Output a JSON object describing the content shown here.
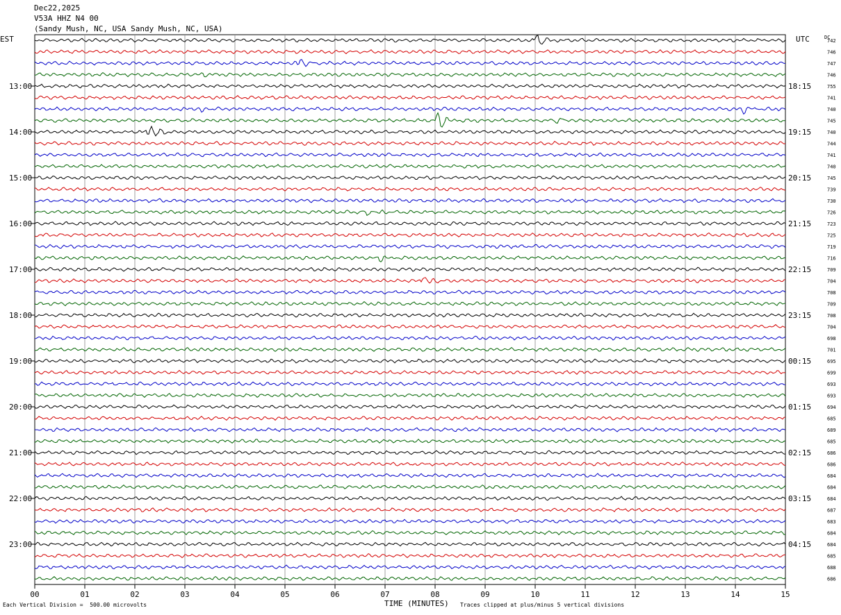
{
  "header": {
    "date": "Dec22,2025",
    "station": "V53A HHZ N4 00",
    "location": "(Sandy Mush, NC, USA Sandy Mush, NC, USA)"
  },
  "axis": {
    "left_label": "EST",
    "right_label": "UTC",
    "dc_label": "DC",
    "xlabel": "TIME (MINUTES)"
  },
  "footer": {
    "scale_note": "Each Vertical Division =  500.00 microvolts",
    "clip_note": "Traces clipped at plus/minus 5 vertical divisions"
  },
  "chart_data": {
    "type": "line",
    "title": "Dec22,2025 V53A HHZ N4 00",
    "xlabel": "TIME (MINUTES)",
    "xlim": [
      0,
      15
    ],
    "x_ticks": [
      "00",
      "01",
      "02",
      "03",
      "04",
      "05",
      "06",
      "07",
      "08",
      "09",
      "10",
      "11",
      "12",
      "13",
      "14",
      "15"
    ],
    "left_time_labels": [
      {
        "row": 4,
        "label": "13:00"
      },
      {
        "row": 8,
        "label": "14:00"
      },
      {
        "row": 12,
        "label": "15:00"
      },
      {
        "row": 16,
        "label": "16:00"
      },
      {
        "row": 20,
        "label": "17:00"
      },
      {
        "row": 24,
        "label": "18:00"
      },
      {
        "row": 28,
        "label": "19:00"
      },
      {
        "row": 32,
        "label": "20:00"
      },
      {
        "row": 36,
        "label": "21:00"
      },
      {
        "row": 40,
        "label": "22:00"
      },
      {
        "row": 44,
        "label": "23:00"
      }
    ],
    "right_time_labels": [
      {
        "row": 4,
        "label": "18:15"
      },
      {
        "row": 8,
        "label": "19:15"
      },
      {
        "row": 12,
        "label": "20:15"
      },
      {
        "row": 16,
        "label": "21:15"
      },
      {
        "row": 20,
        "label": "22:15"
      },
      {
        "row": 24,
        "label": "23:15"
      },
      {
        "row": 28,
        "label": "00:15"
      },
      {
        "row": 32,
        "label": "01:15"
      },
      {
        "row": 36,
        "label": "02:15"
      },
      {
        "row": 40,
        "label": "03:15"
      },
      {
        "row": 44,
        "label": "04:15"
      }
    ],
    "trace_colors": [
      "#000000",
      "#d40000",
      "#0000c8",
      "#006400"
    ],
    "dc_offsets": [
      742,
      746,
      747,
      746,
      755,
      741,
      740,
      745,
      740,
      744,
      741,
      740,
      745,
      739,
      730,
      726,
      723,
      725,
      719,
      716,
      709,
      704,
      708,
      709,
      708,
      704,
      698,
      701,
      695,
      699,
      693,
      693,
      694,
      685,
      689,
      685,
      686,
      686,
      684,
      684,
      684,
      687,
      683,
      684,
      684,
      685,
      688,
      686
    ],
    "events": [
      {
        "row": 0,
        "minute": 10.0,
        "amp": 3.2
      },
      {
        "row": 2,
        "minute": 5.28,
        "amp": 1.6
      },
      {
        "row": 3,
        "minute": 3.4,
        "amp": 0.6
      },
      {
        "row": 6,
        "minute": 3.32,
        "amp": 1.6
      },
      {
        "row": 6,
        "minute": 14.15,
        "amp": 1.6
      },
      {
        "row": 7,
        "minute": 8.05,
        "amp": 3.6
      },
      {
        "row": 7,
        "minute": 10.45,
        "amp": 1.6
      },
      {
        "row": 8,
        "minute": 2.28,
        "amp": 3.4
      },
      {
        "row": 15,
        "minute": 6.6,
        "amp": 2.2
      },
      {
        "row": 19,
        "minute": 6.9,
        "amp": 1.2
      },
      {
        "row": 21,
        "minute": 7.75,
        "amp": 2.0
      }
    ]
  }
}
